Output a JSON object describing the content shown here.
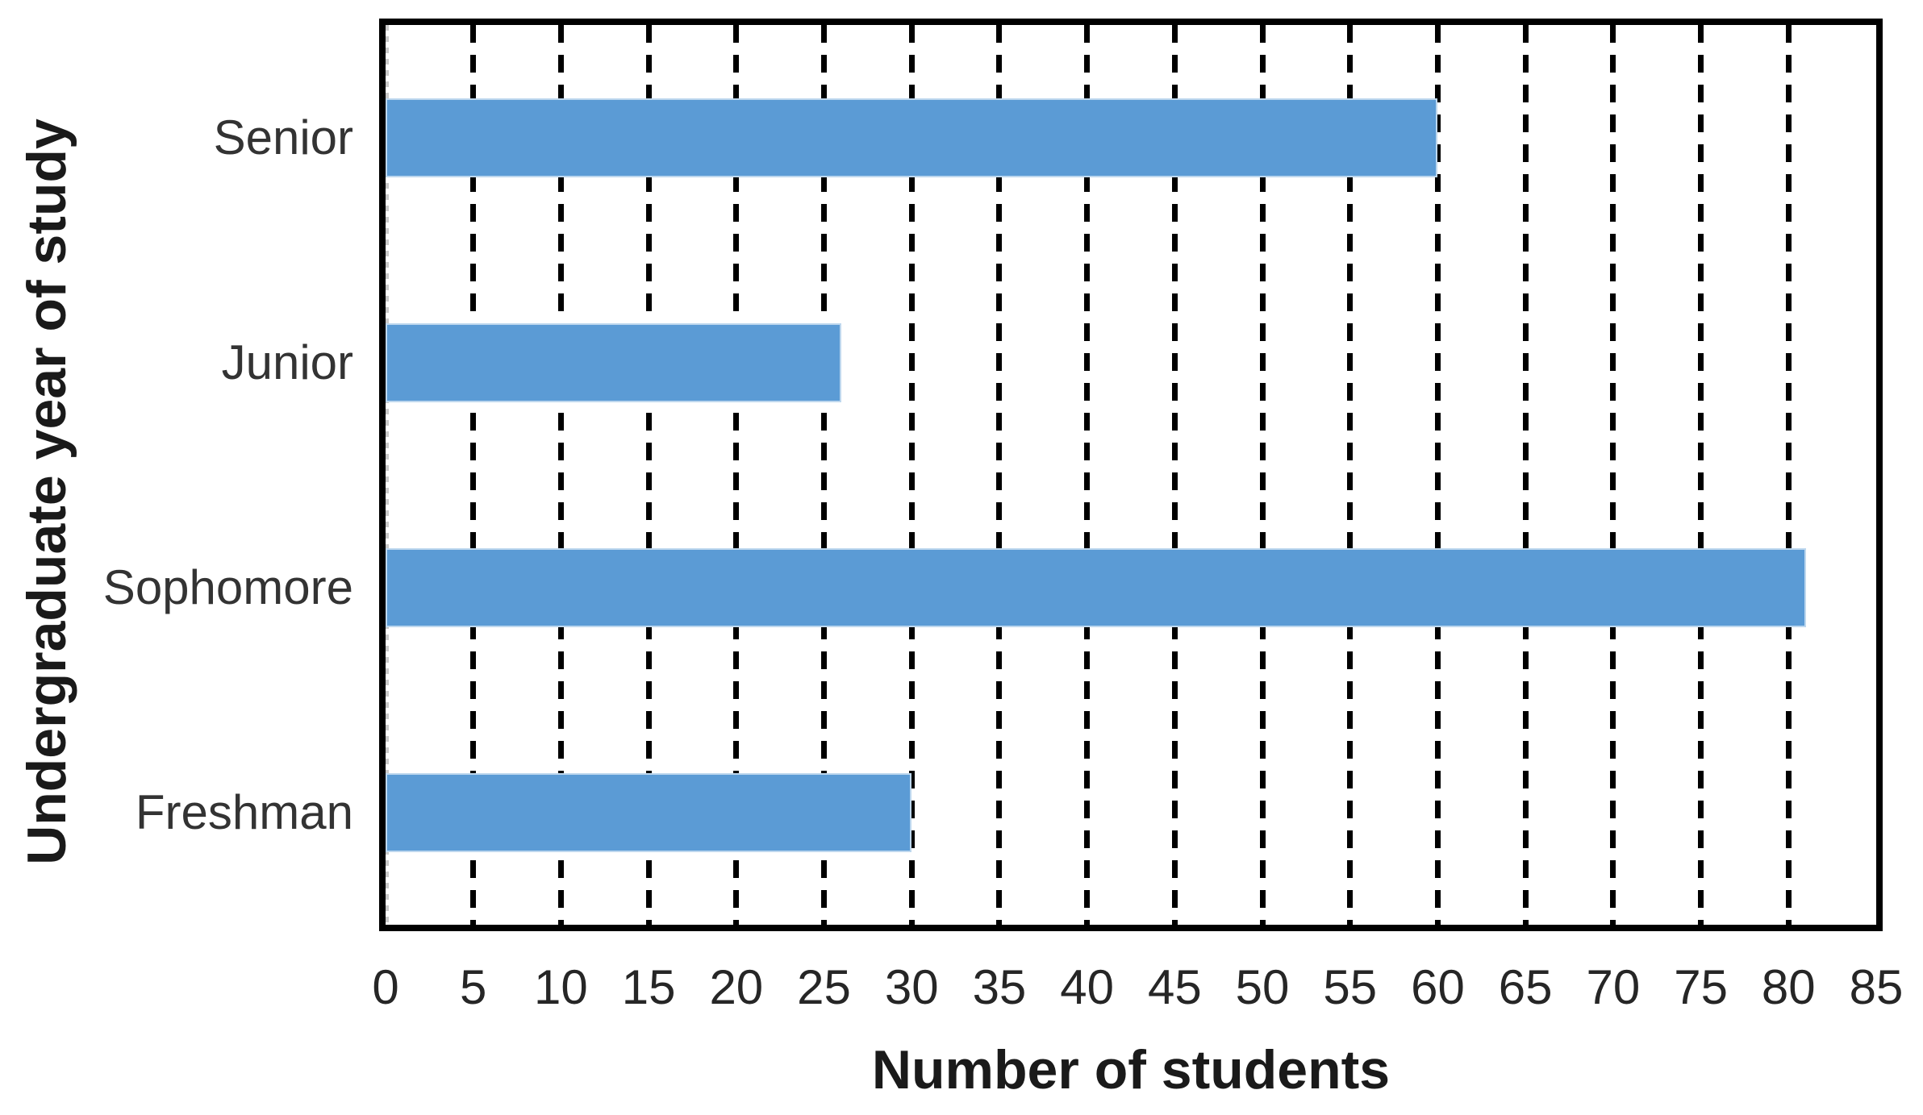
{
  "chart_data": {
    "type": "bar",
    "orientation": "horizontal",
    "title": "",
    "xlabel": "Number of students",
    "ylabel": "Undergraduate year of study",
    "categories": [
      "Senior",
      "Junior",
      "Sophomore",
      "Freshman"
    ],
    "values": [
      60,
      26,
      81,
      30
    ],
    "xlim": [
      0,
      85
    ],
    "xticks": [
      0,
      5,
      10,
      15,
      20,
      25,
      30,
      35,
      40,
      45,
      50,
      55,
      60,
      65,
      70,
      75,
      80,
      85
    ],
    "grid": "vertical-dashed",
    "legend": "none",
    "bar_color": "#5B9BD5",
    "bar_edge_color": "#bdd7ee",
    "gridline_color": "#000000",
    "border_color": "#000000"
  }
}
